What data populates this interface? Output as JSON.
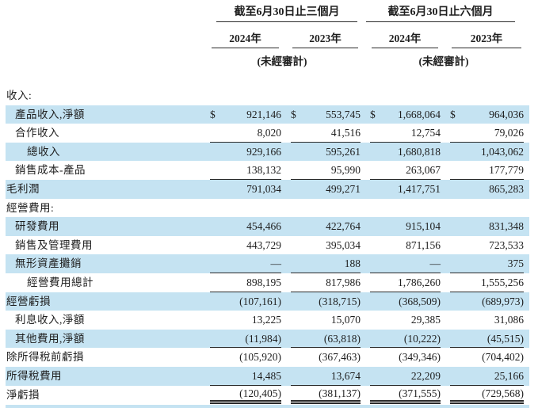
{
  "table": {
    "colors": {
      "highlight": "#c5e3f2",
      "text": "#1e1e1e",
      "border": "#2a2a2a"
    },
    "col_groups": [
      {
        "title": "截至6月30日止三個月",
        "years": [
          "2024年",
          "2023年"
        ],
        "note": "(未經審計)"
      },
      {
        "title": "截至6月30日止六個月",
        "years": [
          "2024年",
          "2023年"
        ],
        "note": "(未經審計)"
      }
    ],
    "rows": [
      {
        "label": "收入:",
        "indent": 0,
        "highlight": false,
        "values": null
      },
      {
        "label": "產品收入,淨額",
        "indent": 1,
        "highlight": true,
        "currency": "$",
        "values": [
          "921,146",
          "553,745",
          "1,668,064",
          "964,036"
        ]
      },
      {
        "label": "合作收入",
        "indent": 1,
        "highlight": false,
        "values": [
          "8,020",
          "41,516",
          "12,754",
          "79,026"
        ],
        "border": "single"
      },
      {
        "label": "總收入",
        "indent": 2,
        "highlight": true,
        "values": [
          "929,166",
          "595,261",
          "1,680,818",
          "1,043,062"
        ]
      },
      {
        "label": "銷售成本-產品",
        "indent": 1,
        "highlight": false,
        "values": [
          "138,132",
          "95,990",
          "263,067",
          "177,779"
        ],
        "border": "single"
      },
      {
        "label": "毛利潤",
        "indent": 0,
        "highlight": true,
        "values": [
          "791,034",
          "499,271",
          "1,417,751",
          "865,283"
        ]
      },
      {
        "label": "經營費用:",
        "indent": 0,
        "highlight": false,
        "values": null
      },
      {
        "label": "研發費用",
        "indent": 1,
        "highlight": true,
        "values": [
          "454,466",
          "422,764",
          "915,104",
          "831,348"
        ]
      },
      {
        "label": "銷售及管理費用",
        "indent": 1,
        "highlight": false,
        "values": [
          "443,729",
          "395,034",
          "871,156",
          "723,533"
        ]
      },
      {
        "label": "無形資產攤銷",
        "indent": 1,
        "highlight": true,
        "values": [
          "—",
          "188",
          "—",
          "375"
        ],
        "border": "single"
      },
      {
        "label": "經營費用總計",
        "indent": 2,
        "highlight": false,
        "values": [
          "898,195",
          "817,986",
          "1,786,260",
          "1,555,256"
        ],
        "border": "single"
      },
      {
        "label": "經營虧損",
        "indent": 0,
        "highlight": true,
        "values": [
          "(107,161)",
          "(318,715)",
          "(368,509)",
          "(689,973)"
        ]
      },
      {
        "label": "利息收入,淨額",
        "indent": 1,
        "highlight": false,
        "values": [
          "13,225",
          "15,070",
          "29,385",
          "31,086"
        ]
      },
      {
        "label": "其他費用,淨額",
        "indent": 1,
        "highlight": true,
        "values": [
          "(11,984)",
          "(63,818)",
          "(10,222)",
          "(45,515)"
        ],
        "border": "single"
      },
      {
        "label": "除所得稅前虧損",
        "indent": 0,
        "highlight": false,
        "values": [
          "(105,920)",
          "(367,463)",
          "(349,346)",
          "(704,402)"
        ]
      },
      {
        "label": "所得稅費用",
        "indent": 0,
        "highlight": true,
        "values": [
          "14,485",
          "13,674",
          "22,209",
          "25,166"
        ],
        "border": "single"
      },
      {
        "label": "淨虧損",
        "indent": 0,
        "highlight": false,
        "values": [
          "(120,405)",
          "(381,137)",
          "(371,555)",
          "(729,568)"
        ],
        "border": "double"
      }
    ]
  }
}
